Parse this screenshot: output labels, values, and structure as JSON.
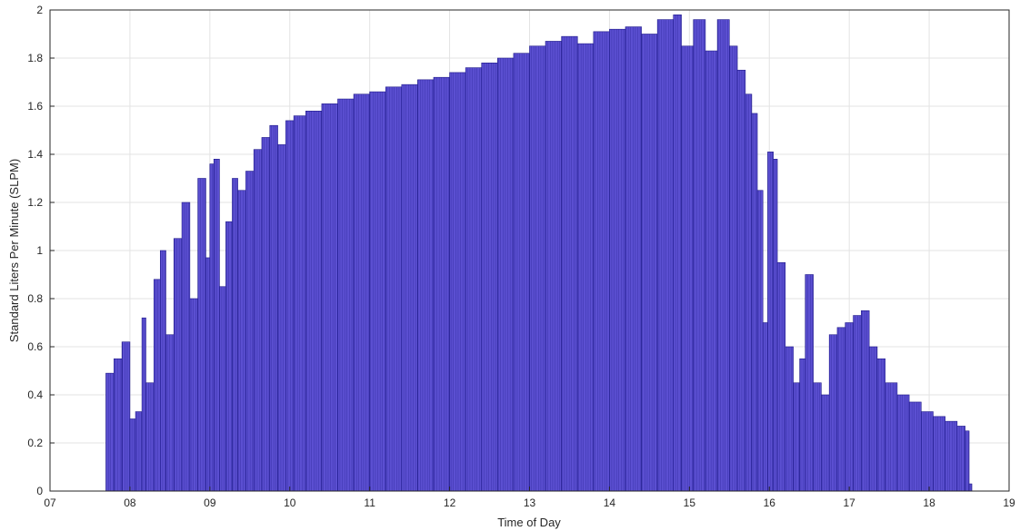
{
  "chart_data": {
    "type": "bar",
    "title": "",
    "xlabel": "Time of Day",
    "ylabel": "Standard Liters Per Minute (SLPM)",
    "xlim": [
      7,
      19
    ],
    "ylim": [
      0,
      2
    ],
    "x_ticks": [
      "07",
      "08",
      "09",
      "10",
      "11",
      "12",
      "13",
      "14",
      "15",
      "16",
      "17",
      "18",
      "19"
    ],
    "y_ticks": [
      "0",
      "0.2",
      "0.4",
      "0.6",
      "0.8",
      "1",
      "1.2",
      "1.4",
      "1.6",
      "1.8",
      "2"
    ],
    "grid": true,
    "bar_color": "#5b4fd1",
    "bar_edge_color": "#1f1a8a",
    "series": [
      {
        "x": [
          7.7,
          7.8,
          7.9,
          8.0,
          8.07,
          8.15,
          8.2,
          8.3,
          8.38,
          8.45,
          8.55,
          8.65,
          8.75,
          8.85,
          8.95,
          9.0,
          9.05,
          9.12,
          9.2,
          9.28,
          9.35,
          9.45,
          9.55,
          9.65,
          9.75,
          9.85,
          9.95,
          10.05,
          10.2,
          10.4,
          10.6,
          10.8,
          11.0,
          11.2,
          11.4,
          11.6,
          11.8,
          12.0,
          12.2,
          12.4,
          12.6,
          12.8,
          13.0,
          13.2,
          13.4,
          13.6,
          13.8,
          14.0,
          14.2,
          14.4,
          14.6,
          14.8,
          14.9,
          15.05,
          15.2,
          15.35,
          15.5,
          15.6,
          15.7,
          15.78,
          15.85,
          15.92,
          15.98,
          16.05,
          16.1,
          16.2,
          16.3,
          16.38,
          16.45,
          16.55,
          16.65,
          16.75,
          16.85,
          16.95,
          17.05,
          17.15,
          17.25,
          17.35,
          17.45,
          17.6,
          17.75,
          17.9,
          18.05,
          18.2,
          18.35,
          18.45,
          18.5
        ],
        "values": [
          0.49,
          0.55,
          0.62,
          0.3,
          0.33,
          0.72,
          0.45,
          0.88,
          1.0,
          0.65,
          1.05,
          1.2,
          0.8,
          1.3,
          0.97,
          1.36,
          1.38,
          0.85,
          1.12,
          1.3,
          1.25,
          1.33,
          1.42,
          1.47,
          1.52,
          1.44,
          1.54,
          1.56,
          1.58,
          1.61,
          1.63,
          1.65,
          1.66,
          1.68,
          1.69,
          1.71,
          1.72,
          1.74,
          1.76,
          1.78,
          1.8,
          1.82,
          1.85,
          1.87,
          1.89,
          1.86,
          1.91,
          1.92,
          1.93,
          1.9,
          1.96,
          1.98,
          1.85,
          1.96,
          1.83,
          1.96,
          1.85,
          1.75,
          1.65,
          1.57,
          1.25,
          0.7,
          1.41,
          1.38,
          0.95,
          0.6,
          0.45,
          0.55,
          0.9,
          0.45,
          0.4,
          0.65,
          0.68,
          0.7,
          0.73,
          0.75,
          0.6,
          0.55,
          0.45,
          0.4,
          0.37,
          0.33,
          0.31,
          0.29,
          0.27,
          0.25,
          0.03
        ]
      }
    ]
  }
}
